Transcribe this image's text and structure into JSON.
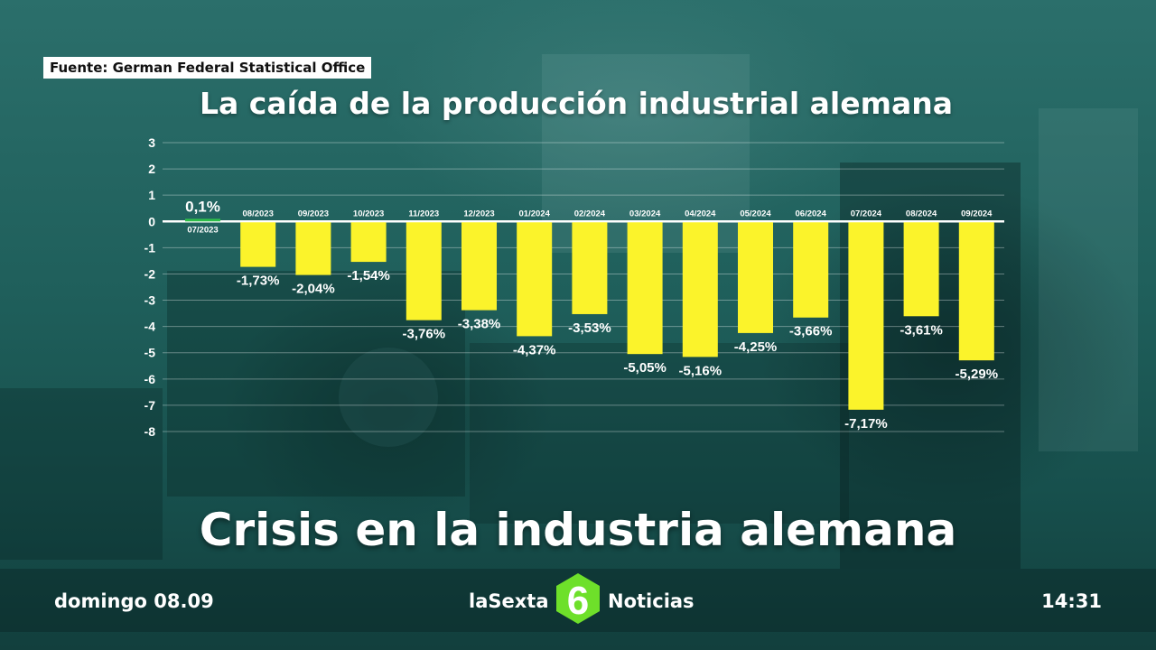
{
  "source_label": "Fuente: German Federal Statistical Office",
  "colors": {
    "bar_negative": "#fbf32b",
    "bar_positive": "#2fbf4a",
    "logo_green": "#6ee02a",
    "text": "#ffffff"
  },
  "chart_data": {
    "type": "bar",
    "title": "La caída de la producción industrial alemana",
    "categories": [
      "07/2023",
      "08/2023",
      "09/2023",
      "10/2023",
      "11/2023",
      "12/2023",
      "01/2024",
      "02/2024",
      "03/2024",
      "04/2024",
      "05/2024",
      "06/2024",
      "07/2024",
      "08/2024",
      "09/2024"
    ],
    "values": [
      0.1,
      -1.73,
      -2.04,
      -1.54,
      -3.76,
      -3.38,
      -4.37,
      -3.53,
      -5.05,
      -5.16,
      -4.25,
      -3.66,
      -7.17,
      -3.61,
      -5.29
    ],
    "value_labels": [
      "0,1%",
      "-1,73%",
      "-2,04%",
      "-1,54%",
      "-3,76%",
      "-3,38%",
      "-4,37%",
      "-3,53%",
      "-5,05%",
      "-5,16%",
      "-4,25%",
      "-3,66%",
      "-7,17%",
      "-3,61%",
      "-5,29%"
    ],
    "yticks": [
      "3",
      "2",
      "1",
      "0",
      "-1",
      "-2",
      "-3",
      "-4",
      "-5",
      "-6",
      "-7",
      "-8"
    ],
    "ylim": [
      -8,
      3
    ],
    "grid": true,
    "xlabel": "",
    "ylabel": ""
  },
  "headline": "Crisis en la industria alemana",
  "footer": {
    "date": "domingo 08.09",
    "channel": "laSexta",
    "logo_text": "6",
    "program": "Noticias",
    "time": "14:31"
  }
}
